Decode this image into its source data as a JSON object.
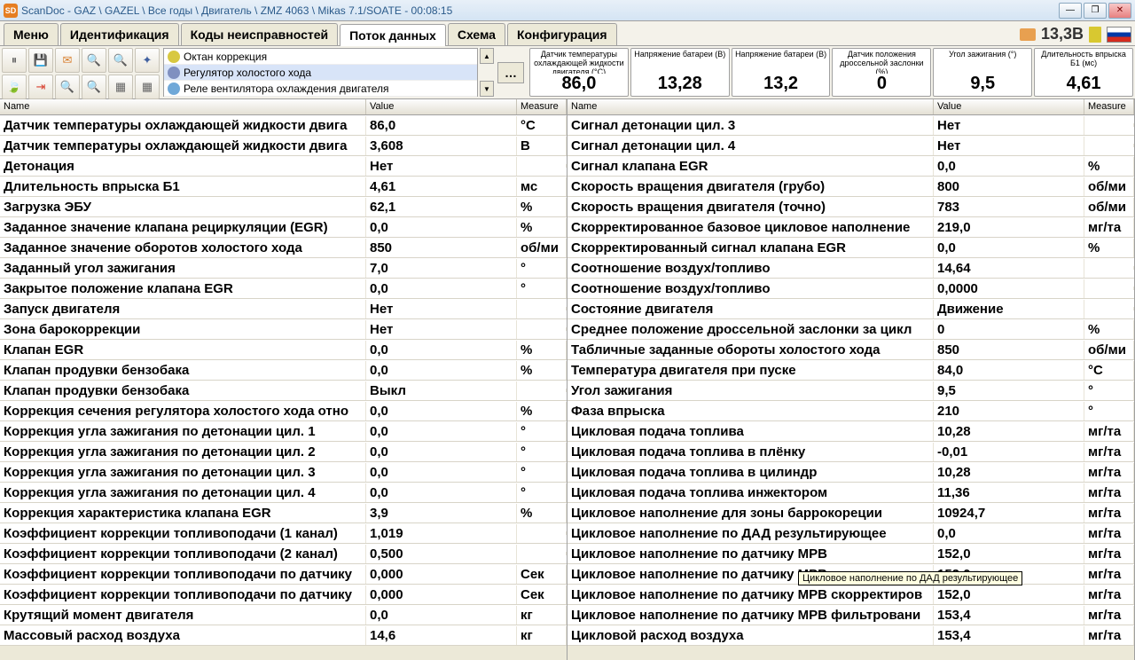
{
  "window": {
    "title": "ScanDoc - GAZ \\ GAZEL \\ Все годы \\ Двигатель \\ ZMZ 4063 \\ Mikas 7.1/SOATE - 00:08:15",
    "icon_letter": "SD"
  },
  "tabs": [
    {
      "label": "Меню",
      "active": false
    },
    {
      "label": "Идентификация",
      "active": false
    },
    {
      "label": "Коды неисправностей",
      "active": false
    },
    {
      "label": "Поток данных",
      "active": true
    },
    {
      "label": "Схема",
      "active": false
    },
    {
      "label": "Конфигурация",
      "active": false
    }
  ],
  "voltage": "13,3В",
  "option_list": [
    {
      "label": "Октан коррекция",
      "icon": "bulb",
      "selected": false
    },
    {
      "label": "Регулятор холостого хода",
      "icon": "fan",
      "selected": true
    },
    {
      "label": "Реле вентилятора охлаждения двигателя",
      "icon": "relay",
      "selected": false
    }
  ],
  "gauges": [
    {
      "label": "Датчик температуры охлаждающей жидкости двигателя (°C)",
      "value": "86,0"
    },
    {
      "label": "Напряжение батареи (В)",
      "value": "13,28"
    },
    {
      "label": "Напряжение батареи (В)",
      "value": "13,2"
    },
    {
      "label": "Датчик положения дроссельной заслонки (%)",
      "value": "0"
    },
    {
      "label": "Угол зажигания (°)",
      "value": "9,5"
    },
    {
      "label": "Длительность впрыска Б1 (мс)",
      "value": "4,61"
    }
  ],
  "columns": {
    "name": "Name",
    "value": "Value",
    "measure": "Measure"
  },
  "left_table": [
    {
      "name": "Датчик температуры охлаждающей жидкости двига",
      "value": "86,0",
      "measure": "°C"
    },
    {
      "name": "Датчик температуры охлаждающей жидкости двига",
      "value": "3,608",
      "measure": "В"
    },
    {
      "name": "Детонация",
      "value": "Нет",
      "measure": ""
    },
    {
      "name": "Длительность впрыска Б1",
      "value": "4,61",
      "measure": "мс"
    },
    {
      "name": "Загрузка ЭБУ",
      "value": "62,1",
      "measure": "%"
    },
    {
      "name": "Заданное значение клапана рециркуляции (EGR)",
      "value": "0,0",
      "measure": "%"
    },
    {
      "name": "Заданное значение оборотов холостого хода",
      "value": "850",
      "measure": "об/ми"
    },
    {
      "name": "Заданный угол зажигания",
      "value": "7,0",
      "measure": "°"
    },
    {
      "name": "Закрытое положение клапана EGR",
      "value": "0,0",
      "measure": "°"
    },
    {
      "name": "Запуск двигателя",
      "value": "Нет",
      "measure": ""
    },
    {
      "name": "Зона барокоррекции",
      "value": "Нет",
      "measure": ""
    },
    {
      "name": "Клапан EGR",
      "value": "0,0",
      "measure": "%"
    },
    {
      "name": "Клапан продувки бензобака",
      "value": "0,0",
      "measure": "%"
    },
    {
      "name": "Клапан продувки бензобака",
      "value": "Выкл",
      "measure": ""
    },
    {
      "name": "Коррекция сечения регулятора холостого хода отно",
      "value": "0,0",
      "measure": "%"
    },
    {
      "name": "Коррекция угла зажигания по детонации цил. 1",
      "value": "0,0",
      "measure": "°"
    },
    {
      "name": "Коррекция угла зажигания по детонации цил. 2",
      "value": "0,0",
      "measure": "°"
    },
    {
      "name": "Коррекция угла зажигания по детонации цил. 3",
      "value": "0,0",
      "measure": "°"
    },
    {
      "name": "Коррекция угла зажигания по детонации цил. 4",
      "value": "0,0",
      "measure": "°"
    },
    {
      "name": "Коррекция характеристика клапана EGR",
      "value": "3,9",
      "measure": "%"
    },
    {
      "name": "Коэффициент коррекции топливоподачи (1 канал)",
      "value": "1,019",
      "measure": ""
    },
    {
      "name": "Коэффициент коррекции топливоподачи (2 канал)",
      "value": "0,500",
      "measure": ""
    },
    {
      "name": "Коэффициент коррекции топливоподачи по датчику",
      "value": "0,000",
      "measure": "Сек"
    },
    {
      "name": "Коэффициент коррекции топливоподачи по датчику",
      "value": "0,000",
      "measure": "Сек"
    },
    {
      "name": "Крутящий момент двигателя",
      "value": "0,0",
      "measure": "кг"
    },
    {
      "name": "Массовый расход воздуха",
      "value": "14,6",
      "measure": "кг"
    }
  ],
  "right_table": [
    {
      "name": "Сигнал детонации цил. 3",
      "value": "Нет",
      "measure": ""
    },
    {
      "name": "Сигнал детонации цил. 4",
      "value": "Нет",
      "measure": ""
    },
    {
      "name": "Сигнал клапана EGR",
      "value": "0,0",
      "measure": "%"
    },
    {
      "name": "Скорость вращения двигателя (грубо)",
      "value": "800",
      "measure": "об/ми"
    },
    {
      "name": "Скорость вращения двигателя (точно)",
      "value": "783",
      "measure": "об/ми"
    },
    {
      "name": "Скорректированное базовое цикловое наполнение",
      "value": "219,0",
      "measure": "мг/та"
    },
    {
      "name": "Скорректированный сигнал клапана EGR",
      "value": "0,0",
      "measure": "%"
    },
    {
      "name": "Соотношение воздух/топливо",
      "value": "14,64",
      "measure": ""
    },
    {
      "name": "Соотношение воздух/топливо",
      "value": "0,0000",
      "measure": ""
    },
    {
      "name": "Состояние двигателя",
      "value": "Движение",
      "measure": ""
    },
    {
      "name": "Среднее положение дроссельной заслонки за цикл",
      "value": "0",
      "measure": "%"
    },
    {
      "name": "Табличные заданные обороты холостого хода",
      "value": "850",
      "measure": "об/ми"
    },
    {
      "name": "Температура двигателя при пуске",
      "value": "84,0",
      "measure": "°C"
    },
    {
      "name": "Угол зажигания",
      "value": "9,5",
      "measure": "°"
    },
    {
      "name": "Фаза впрыска",
      "value": "210",
      "measure": "°"
    },
    {
      "name": "Цикловая подача топлива",
      "value": "10,28",
      "measure": "мг/та"
    },
    {
      "name": "Цикловая подача топлива в плёнку",
      "value": "-0,01",
      "measure": "мг/та"
    },
    {
      "name": "Цикловая подача топлива в цилиндр",
      "value": "10,28",
      "measure": "мг/та"
    },
    {
      "name": "Цикловая подача топлива инжектором",
      "value": "11,36",
      "measure": "мг/та"
    },
    {
      "name": "Цикловое наполнение для зоны баррокореции",
      "value": "10924,7",
      "measure": "мг/та"
    },
    {
      "name": "Цикловое наполнение по ДАД результирующее",
      "value": "0,0",
      "measure": "мг/та"
    },
    {
      "name": "Цикловое наполнение по датчику МРВ",
      "value": "152,0",
      "measure": "мг/та"
    },
    {
      "name": "Цикловое наполнение по датчику МРВ результирую",
      "value": "152,0",
      "measure": "мг/та"
    },
    {
      "name": "Цикловое наполнение по датчику МРВ скорректиров",
      "value": "152,0",
      "measure": "мг/та"
    },
    {
      "name": "Цикловое наполнение по датчику МРВ фильтровани",
      "value": "153,4",
      "measure": "мг/та"
    },
    {
      "name": "Цикловой расход воздуха",
      "value": "153,4",
      "measure": "мг/та"
    }
  ],
  "tooltip": "Цикловое наполнение по ДАД результирующее",
  "toolbar_icons": [
    {
      "name": "pause-icon",
      "glyph": "⏸",
      "color": "#666"
    },
    {
      "name": "save-icon",
      "glyph": "💾",
      "color": "#4a70b8"
    },
    {
      "name": "mail-icon",
      "glyph": "✉",
      "color": "#d88030"
    },
    {
      "name": "search-icon",
      "glyph": "🔍",
      "color": "#888"
    },
    {
      "name": "search2-icon",
      "glyph": "🔍",
      "color": "#888"
    },
    {
      "name": "compass-icon",
      "glyph": "✦",
      "color": "#4060a0"
    },
    {
      "name": "leaf-icon",
      "glyph": "🍃",
      "color": "#3a9030"
    },
    {
      "name": "export-icon",
      "glyph": "⇥",
      "color": "#d84030"
    },
    {
      "name": "zoom-icon",
      "glyph": "🔍",
      "color": "#d88030"
    },
    {
      "name": "zoom2-icon",
      "glyph": "🔍",
      "color": "#d88030"
    },
    {
      "name": "grid-icon",
      "glyph": "▦",
      "color": "#666"
    },
    {
      "name": "grid2-icon",
      "glyph": "▦",
      "color": "#666"
    }
  ]
}
